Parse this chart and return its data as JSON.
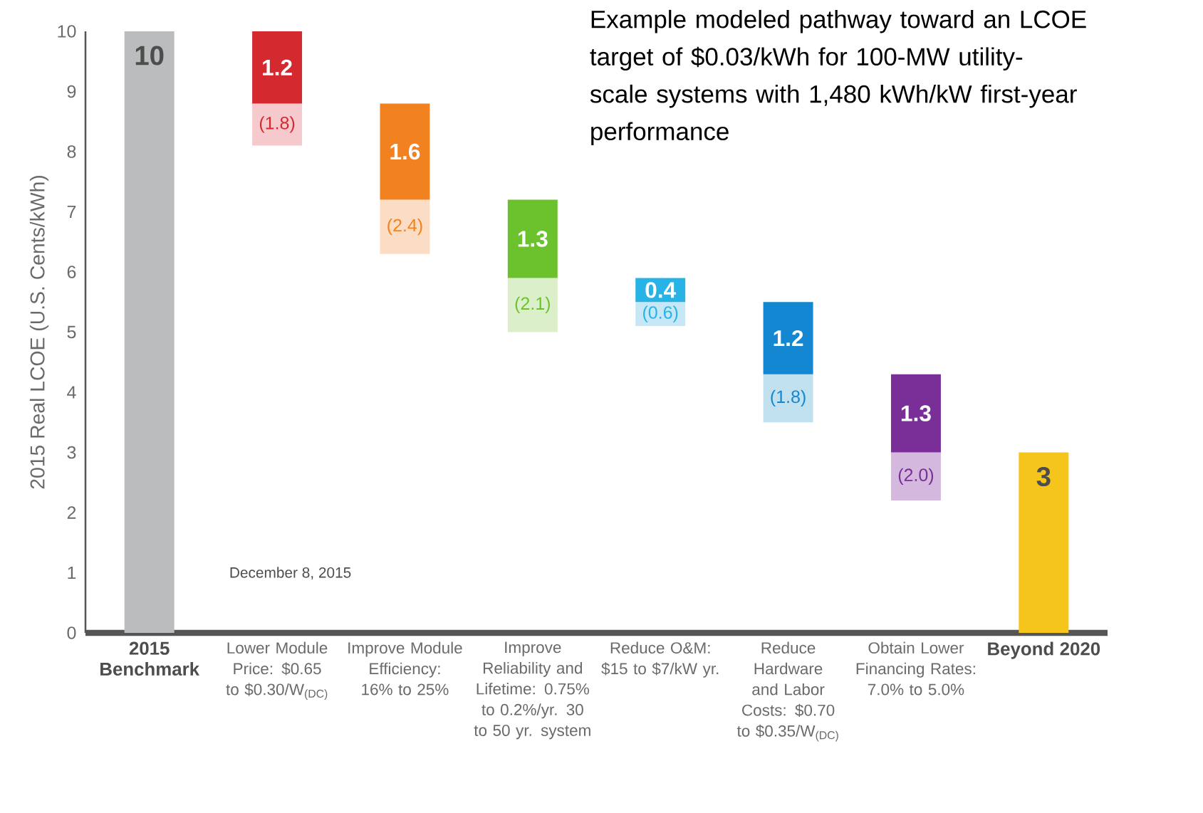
{
  "chart_data": {
    "type": "bar",
    "title": "Example modeled pathway toward an LCOE target of $0.03/kWh for 100-MW utility-scale systems with 1,480 kWh/kW first-year performance",
    "ylabel": "2015 Real LCOE (U.S. Cents/kWh)",
    "annotations": [
      "December 8, 2015",
      "(1.8)",
      "(2.4)",
      "(2.1)",
      "(0.6)",
      "(1.8)",
      "(2.0)"
    ],
    "categories": [
      "2015 Benchmark",
      "Lower Module Price: $0.65 to $0.30/W$_{(DC)}$",
      "Improve Module Efficiency: 16% to 25%",
      "Improve Reliability and Lifetime: 0.75% to 0.2%/yr. 30 to 50 yr. system",
      "Reduce O&M: $15 to $7/kW yr.",
      "Reduce Hardware and Labor Costs: $0.70 to $0.35/W$_{(DC)}$",
      "Obtain Lower Financing Rates: 7.0% to 5.0%",
      "Beyond 2020"
    ],
    "series": [
      {
        "colors": [
          "#bbbcbe",
          "#f6c9cc",
          "#fbdcc4",
          "#dcefcb",
          "#c6e8f6",
          "#c2e1ef",
          "#d4b8de",
          "#f6c51b"
        ],
        "base": [
          null,
          8.1,
          6.3,
          5.0,
          5.1,
          3.5,
          2.2,
          null
        ],
        "values": [
          null,
          0.7,
          0.9,
          0.9,
          0.4,
          0.8,
          0.8,
          null
        ]
      },
      {
        "colors": [
          "#bbbcbe",
          "#d42a2f",
          "#f2821f",
          "#6cc22c",
          "#27b3e6",
          "#1387d1",
          "#7a2f98",
          "#f6c51b"
        ],
        "base": [
          0,
          8.8,
          7.2,
          5.9,
          5.5,
          4.3,
          3.0,
          0
        ],
        "values": [
          10,
          1.2,
          1.6,
          1.3,
          0.4,
          1.2,
          1.3,
          3
        ],
        "value_labels": [
          "10",
          "1.2",
          "1.6",
          "1.3",
          "0.4",
          "1.2",
          "1.3",
          "3"
        ]
      }
    ],
    "ylim": [
      0,
      10
    ],
    "yticks": [
      0,
      1,
      2,
      3,
      4,
      5,
      6,
      7,
      8,
      9,
      10
    ],
    "grid": false
  }
}
